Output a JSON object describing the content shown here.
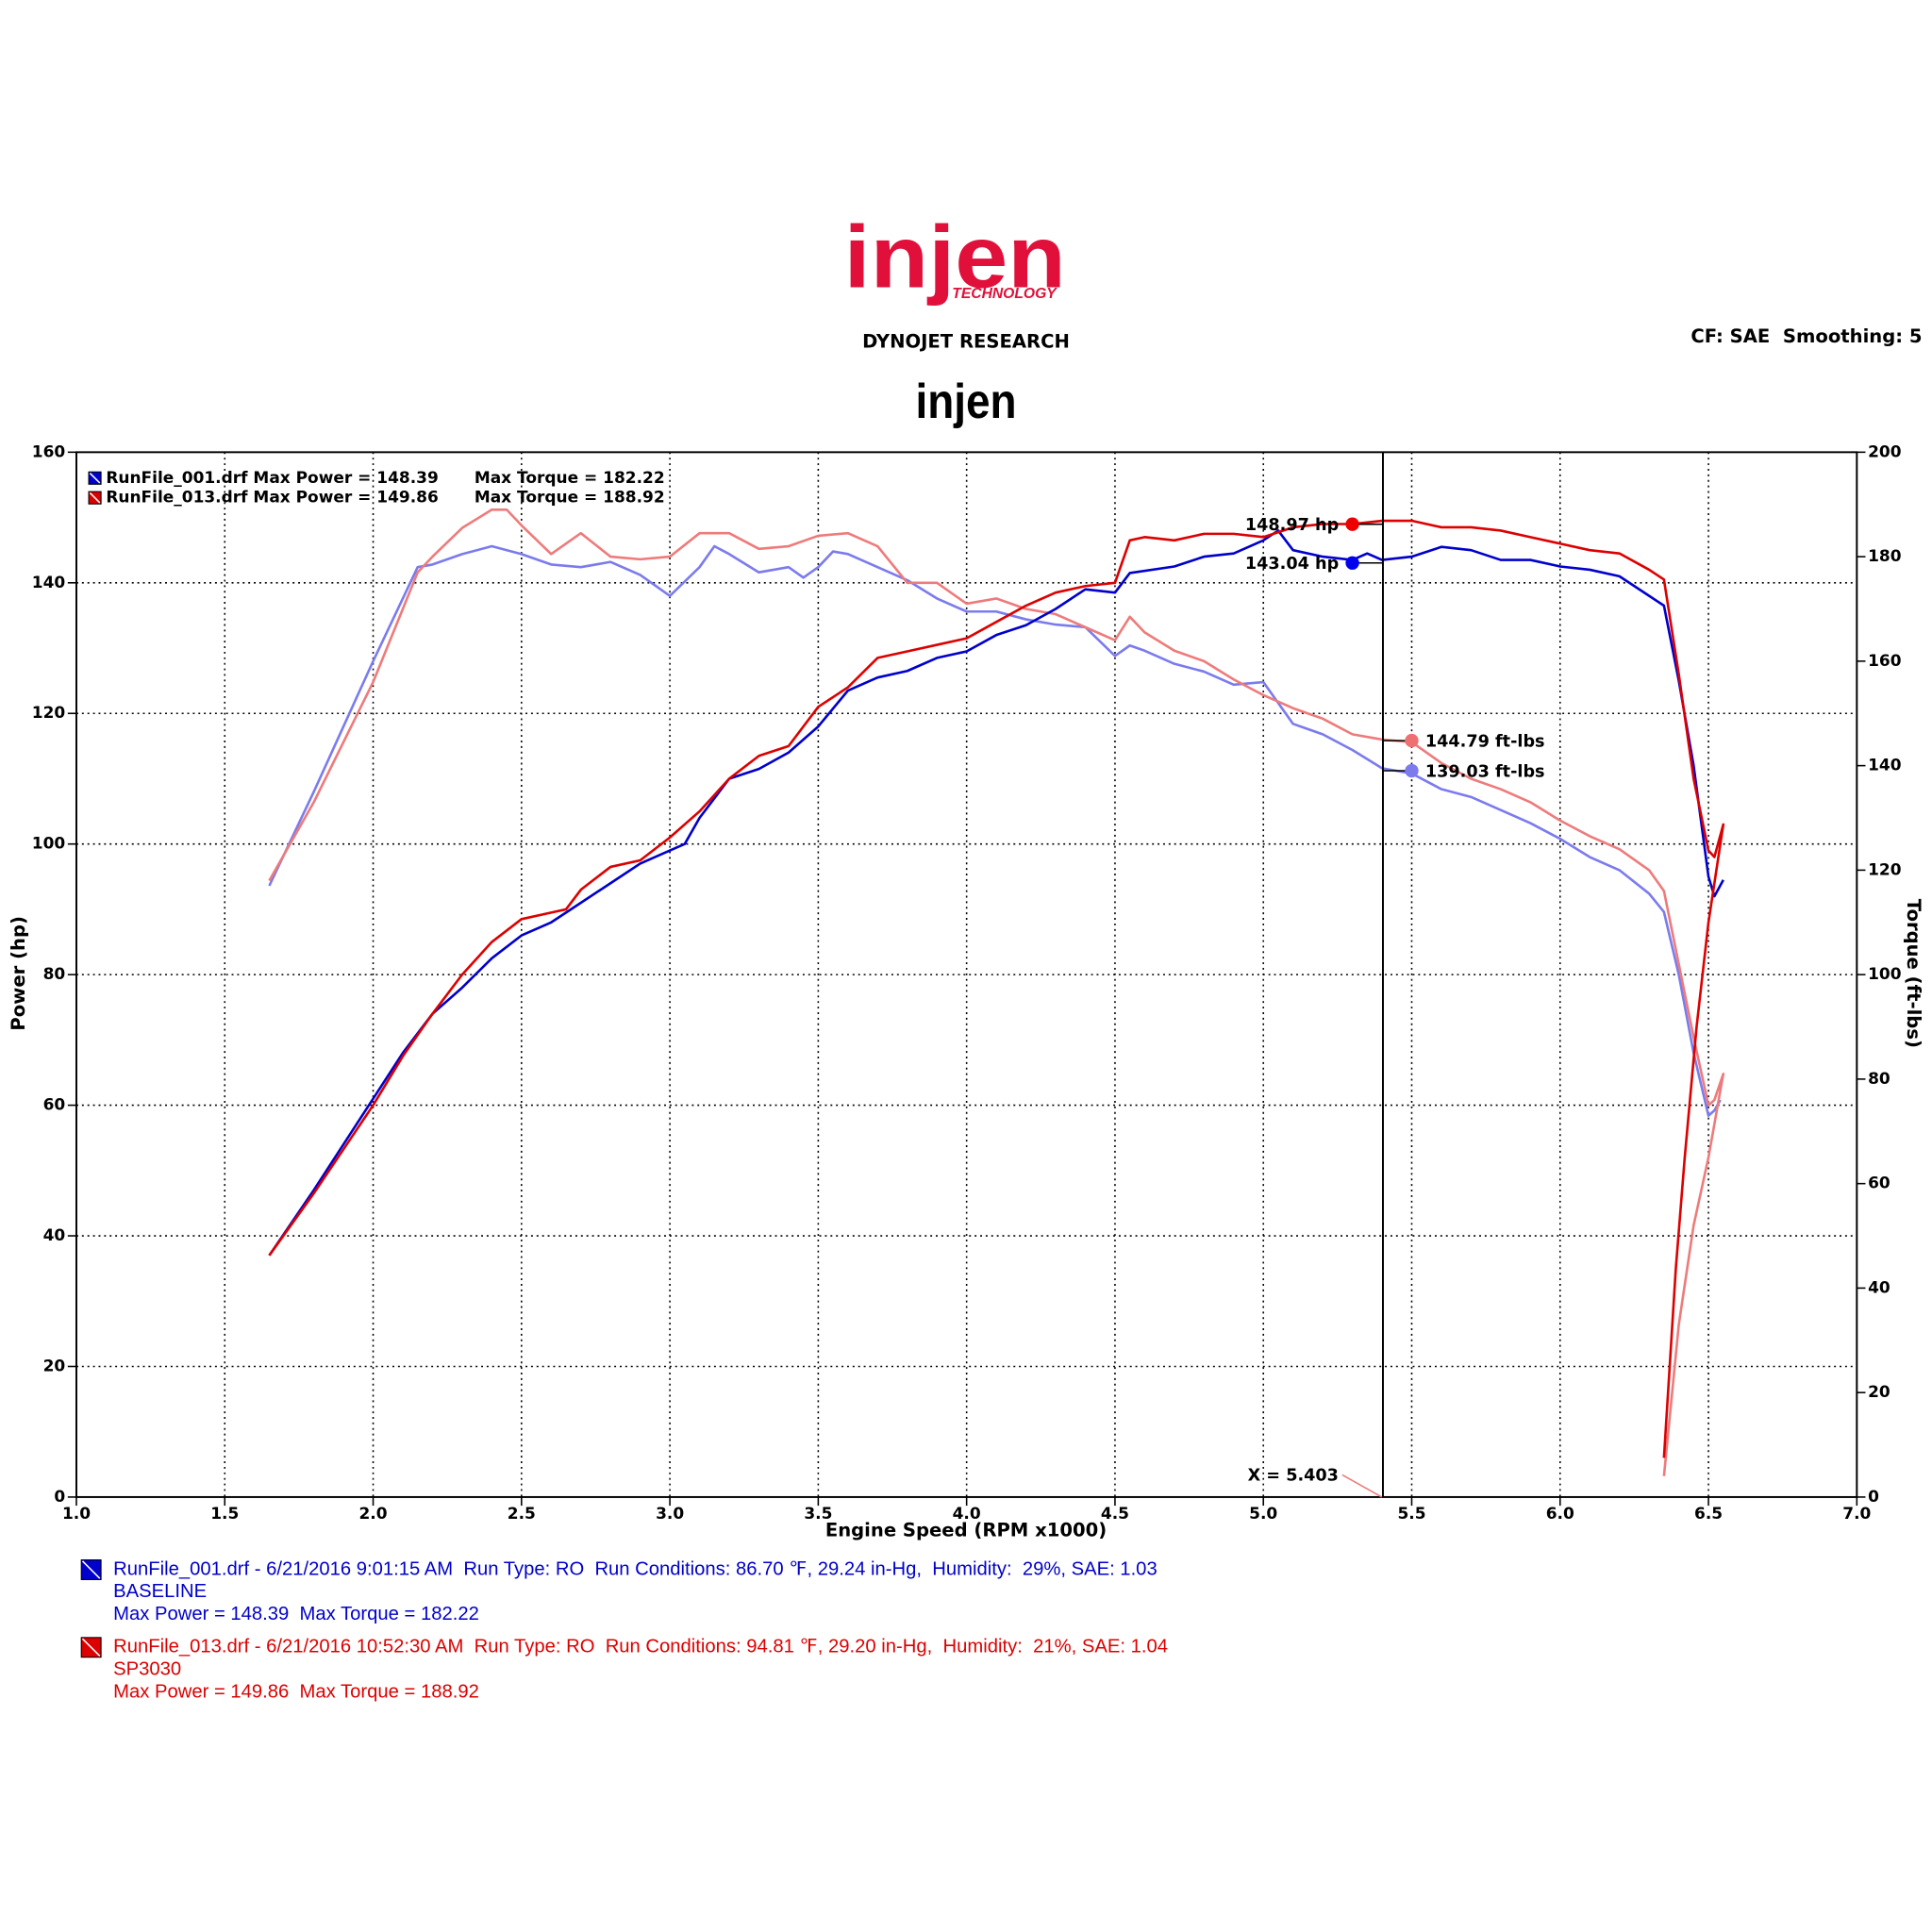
{
  "header": {
    "logo": "injen",
    "logo_sub": "TECHNOLOGY",
    "vendor": "DYNOJET RESEARCH",
    "title": "injen",
    "settings": "CF: SAE  Smoothing: 5"
  },
  "chart_data": {
    "type": "line",
    "xlabel": "Engine Speed (RPM x1000)",
    "ylabel": "Power (hp)",
    "y2label": "Torque (ft-lbs)",
    "xlim": [
      1,
      7
    ],
    "xticks": [
      {
        "value": 1,
        "label": "1.0"
      },
      {
        "value": 1.5,
        "label": "1.5"
      },
      {
        "value": 2,
        "label": "2.0"
      },
      {
        "value": 2.5,
        "label": "2.5"
      },
      {
        "value": 3,
        "label": "3.0"
      },
      {
        "value": 3.5,
        "label": "3.5"
      },
      {
        "value": 4,
        "label": "4.0"
      },
      {
        "value": 4.5,
        "label": "4.5"
      },
      {
        "value": 5,
        "label": "5.0"
      },
      {
        "value": 5.5,
        "label": "5.5"
      },
      {
        "value": 6,
        "label": "6.0"
      },
      {
        "value": 6.5,
        "label": "6.5"
      },
      {
        "value": 7,
        "label": "7.0"
      }
    ],
    "ylim": [
      0,
      160
    ],
    "yticks": [
      0,
      20,
      40,
      60,
      80,
      100,
      120,
      140,
      160
    ],
    "y2lim": [
      0,
      200
    ],
    "y2ticks": [
      0,
      20,
      40,
      60,
      80,
      100,
      120,
      140,
      160,
      180,
      200
    ],
    "grid": true,
    "series": [
      {
        "color": "#7b7bee",
        "axis": "y2",
        "x": [
          1.65,
          1.8,
          2.0,
          2.1,
          2.15,
          2.2,
          2.3,
          2.4,
          2.5,
          2.6,
          2.7,
          2.8,
          2.9,
          3.0,
          3.1,
          3.15,
          3.2,
          3.3,
          3.4,
          3.45,
          3.5,
          3.55,
          3.6,
          3.7,
          3.8,
          3.9,
          4.0,
          4.1,
          4.2,
          4.3,
          4.4,
          4.5,
          4.55,
          4.6,
          4.7,
          4.8,
          4.9,
          5.0,
          5.1,
          5.2,
          5.3,
          5.4,
          5.5,
          5.6,
          5.7,
          5.8,
          5.9,
          6.0,
          6.1,
          6.2,
          6.3,
          6.35,
          6.4,
          6.45,
          6.5,
          6.52,
          6.54
        ],
        "values": [
          117,
          135,
          160,
          172,
          178,
          178.5,
          180.5,
          182,
          180.5,
          178.5,
          178,
          179,
          176.5,
          172.5,
          178,
          182,
          180.5,
          177,
          178,
          176,
          178,
          181,
          180.5,
          178,
          175.5,
          172,
          169.5,
          169.5,
          168,
          167,
          166.5,
          161,
          163,
          162,
          159.5,
          158,
          155.5,
          156,
          148,
          146,
          143,
          139.5,
          138.5,
          135.5,
          134,
          131.5,
          129,
          126,
          122.5,
          120,
          115.5,
          112,
          100,
          85,
          73,
          74,
          76
        ]
      },
      {
        "color": "#ee7b7b",
        "axis": "y2",
        "x": [
          1.65,
          1.8,
          2.0,
          2.1,
          2.15,
          2.2,
          2.3,
          2.4,
          2.45,
          2.5,
          2.6,
          2.7,
          2.8,
          2.9,
          3.0,
          3.1,
          3.2,
          3.3,
          3.4,
          3.5,
          3.6,
          3.7,
          3.8,
          3.9,
          4.0,
          4.1,
          4.2,
          4.3,
          4.4,
          4.5,
          4.55,
          4.6,
          4.7,
          4.8,
          4.9,
          5.0,
          5.1,
          5.2,
          5.3,
          5.4,
          5.5,
          5.6,
          5.7,
          5.8,
          5.9,
          6.0,
          6.1,
          6.2,
          6.3,
          6.35,
          6.4,
          6.45,
          6.5,
          6.52,
          6.55,
          6.5,
          6.45,
          6.4,
          6.35
        ],
        "values": [
          118,
          133,
          156,
          170,
          177,
          180,
          185.5,
          189,
          189,
          186,
          180.5,
          184.5,
          180,
          179.5,
          180,
          184.5,
          184.5,
          181.5,
          182,
          184,
          184.5,
          182,
          175,
          175,
          171,
          172,
          170,
          169,
          166.5,
          164,
          168.5,
          165.5,
          162,
          160,
          156.5,
          153.5,
          151,
          149,
          146,
          145,
          144.5,
          140.5,
          137.5,
          135.5,
          133,
          129.5,
          126.5,
          124,
          120,
          116,
          102,
          88,
          75,
          76,
          81,
          65,
          52,
          33,
          4
        ]
      },
      {
        "color": "#0000cc",
        "axis": "y",
        "x": [
          1.65,
          1.8,
          2.0,
          2.1,
          2.2,
          2.3,
          2.4,
          2.5,
          2.6,
          2.7,
          2.8,
          2.9,
          3.0,
          3.05,
          3.1,
          3.2,
          3.3,
          3.4,
          3.5,
          3.6,
          3.7,
          3.8,
          3.9,
          4.0,
          4.1,
          4.2,
          4.3,
          4.4,
          4.5,
          4.55,
          4.7,
          4.8,
          4.9,
          5.0,
          5.05,
          5.1,
          5.2,
          5.3,
          5.35,
          5.4,
          5.5,
          5.6,
          5.7,
          5.8,
          5.9,
          6.0,
          6.1,
          6.2,
          6.3,
          6.35,
          6.4,
          6.45,
          6.5,
          6.52,
          6.55
        ],
        "values": [
          37,
          47,
          61,
          68,
          74,
          78,
          82.5,
          86,
          88,
          91,
          94,
          97,
          99,
          100,
          104,
          110,
          111.5,
          114,
          118,
          123.5,
          125.5,
          126.5,
          128.5,
          129.5,
          132,
          133.5,
          136,
          139,
          138.5,
          141.5,
          142.5,
          144,
          144.5,
          146.5,
          148,
          145,
          144,
          143.5,
          144.5,
          143.5,
          144,
          145.5,
          145,
          143.5,
          143.5,
          142.5,
          142,
          141,
          138,
          136.5,
          125,
          112,
          95,
          92,
          94.5
        ]
      },
      {
        "color": "#dd0000",
        "axis": "y",
        "x": [
          1.65,
          1.8,
          2.0,
          2.1,
          2.2,
          2.3,
          2.4,
          2.5,
          2.6,
          2.65,
          2.7,
          2.8,
          2.9,
          3.0,
          3.1,
          3.2,
          3.3,
          3.4,
          3.5,
          3.6,
          3.7,
          3.8,
          3.9,
          4.0,
          4.1,
          4.2,
          4.3,
          4.4,
          4.5,
          4.55,
          4.6,
          4.7,
          4.8,
          4.9,
          5.0,
          5.1,
          5.2,
          5.3,
          5.4,
          5.5,
          5.6,
          5.7,
          5.8,
          5.9,
          6.0,
          6.1,
          6.2,
          6.3,
          6.35,
          6.4,
          6.45,
          6.5,
          6.52,
          6.55,
          6.5,
          6.46,
          6.42,
          6.39,
          6.35
        ],
        "values": [
          37,
          46.5,
          60,
          67.5,
          74,
          80,
          85,
          88.5,
          89.5,
          90,
          93,
          96.5,
          97.5,
          101,
          105,
          110,
          113.5,
          115,
          121,
          124,
          128.5,
          129.5,
          130.5,
          131.5,
          134,
          136.5,
          138.5,
          139.5,
          140,
          146.5,
          147,
          146.5,
          147.5,
          147.5,
          147,
          148.5,
          149,
          149,
          149.5,
          149.5,
          148.5,
          148.5,
          148,
          147,
          146,
          145,
          144.5,
          142,
          140.5,
          126,
          110,
          99,
          98,
          103,
          88,
          72,
          52,
          35,
          6
        ]
      }
    ],
    "cursor": {
      "value": 5.403,
      "label": "X = 5.403"
    },
    "annotations": [
      {
        "x": 5.3,
        "value": 148.97,
        "label": "148.97 hp",
        "axis": "y",
        "color": "#ee0000"
      },
      {
        "x": 5.3,
        "value": 143.04,
        "label": "143.04 hp",
        "axis": "y",
        "color": "#0000ee"
      },
      {
        "x": 5.5,
        "value": 144.79,
        "label": "144.79 ft-lbs",
        "axis": "y2",
        "color": "#ee7070"
      },
      {
        "x": 5.5,
        "value": 139.03,
        "label": "139.03 ft-lbs",
        "axis": "y2",
        "color": "#7b7bee"
      }
    ],
    "legend": [
      {
        "color": "#0000cc",
        "power": "RunFile_001.drf Max Power = 148.39",
        "torque": "Max Torque = 182.22",
        "details": [
          "RunFile_001.drf - 6/21/2016 9:01:15 AM  Run Type: RO  Run Conditions: 86.70 ℉, 29.24 in-Hg,  Humidity:  29%, SAE: 1.03",
          "BASELINE",
          "Max Power = 148.39  Max Torque = 182.22"
        ]
      },
      {
        "color": "#dd0000",
        "power": "RunFile_013.drf Max Power = 149.86",
        "torque": "Max Torque = 188.92",
        "details": [
          "RunFile_013.drf - 6/21/2016 10:52:30 AM  Run Type: RO  Run Conditions: 94.81 ℉, 29.20 in-Hg,  Humidity:  21%, SAE: 1.04",
          "SP3030",
          "Max Power = 149.86  Max Torque = 188.92"
        ]
      }
    ]
  }
}
